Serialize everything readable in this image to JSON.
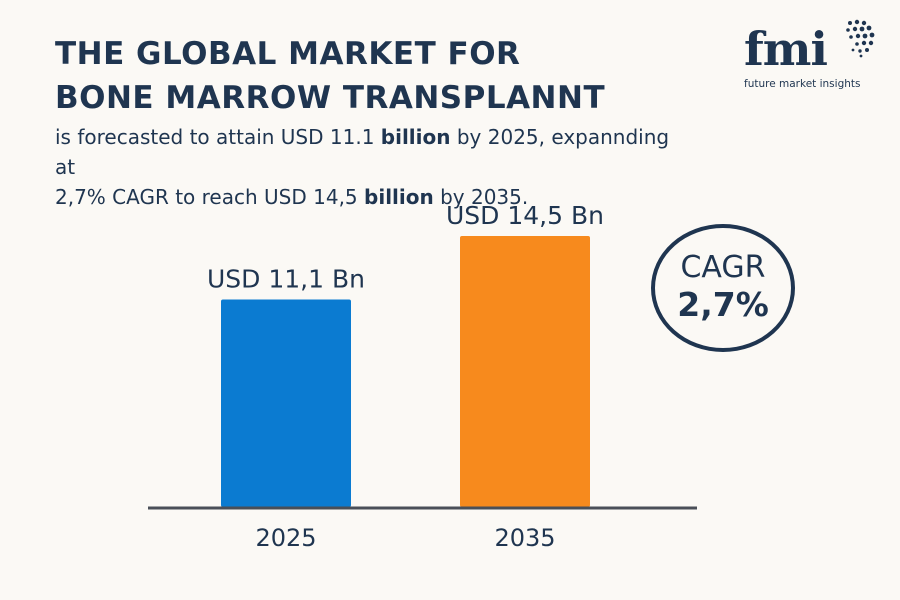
{
  "header": {
    "title_line1": "THE GLOBAL MARKET FOR",
    "title_line2": "BONE MARROW TRANSPLANNT",
    "subtitle": {
      "p1": "is forecasted to attain USD 11.1 ",
      "p2": "billion",
      "p3": " by 2025, expannding at",
      "p4": "2,7% CAGR to reach USD 14,5 ",
      "p5": "billion",
      "p6": " by 2035."
    }
  },
  "logo": {
    "letters": "fmi",
    "tagline": "future market insights",
    "icon": "globe-dots-icon"
  },
  "cagr": {
    "label": "CAGR",
    "value": "2,7%"
  },
  "colors": {
    "navy": "#1f3550",
    "bar_2025": "#0b7bd1",
    "bar_2035": "#f78a1d",
    "axis": "#4a4f58"
  },
  "chart_data": {
    "type": "bar",
    "categories": [
      "2025",
      "2035"
    ],
    "values": [
      11.1,
      14.5
    ],
    "value_labels": [
      "USD 11,1 Bn",
      "USD 14,5 Bn"
    ],
    "unit": "USD Bn",
    "ylim": [
      0,
      14.5
    ],
    "grid": false,
    "legend": "none"
  }
}
